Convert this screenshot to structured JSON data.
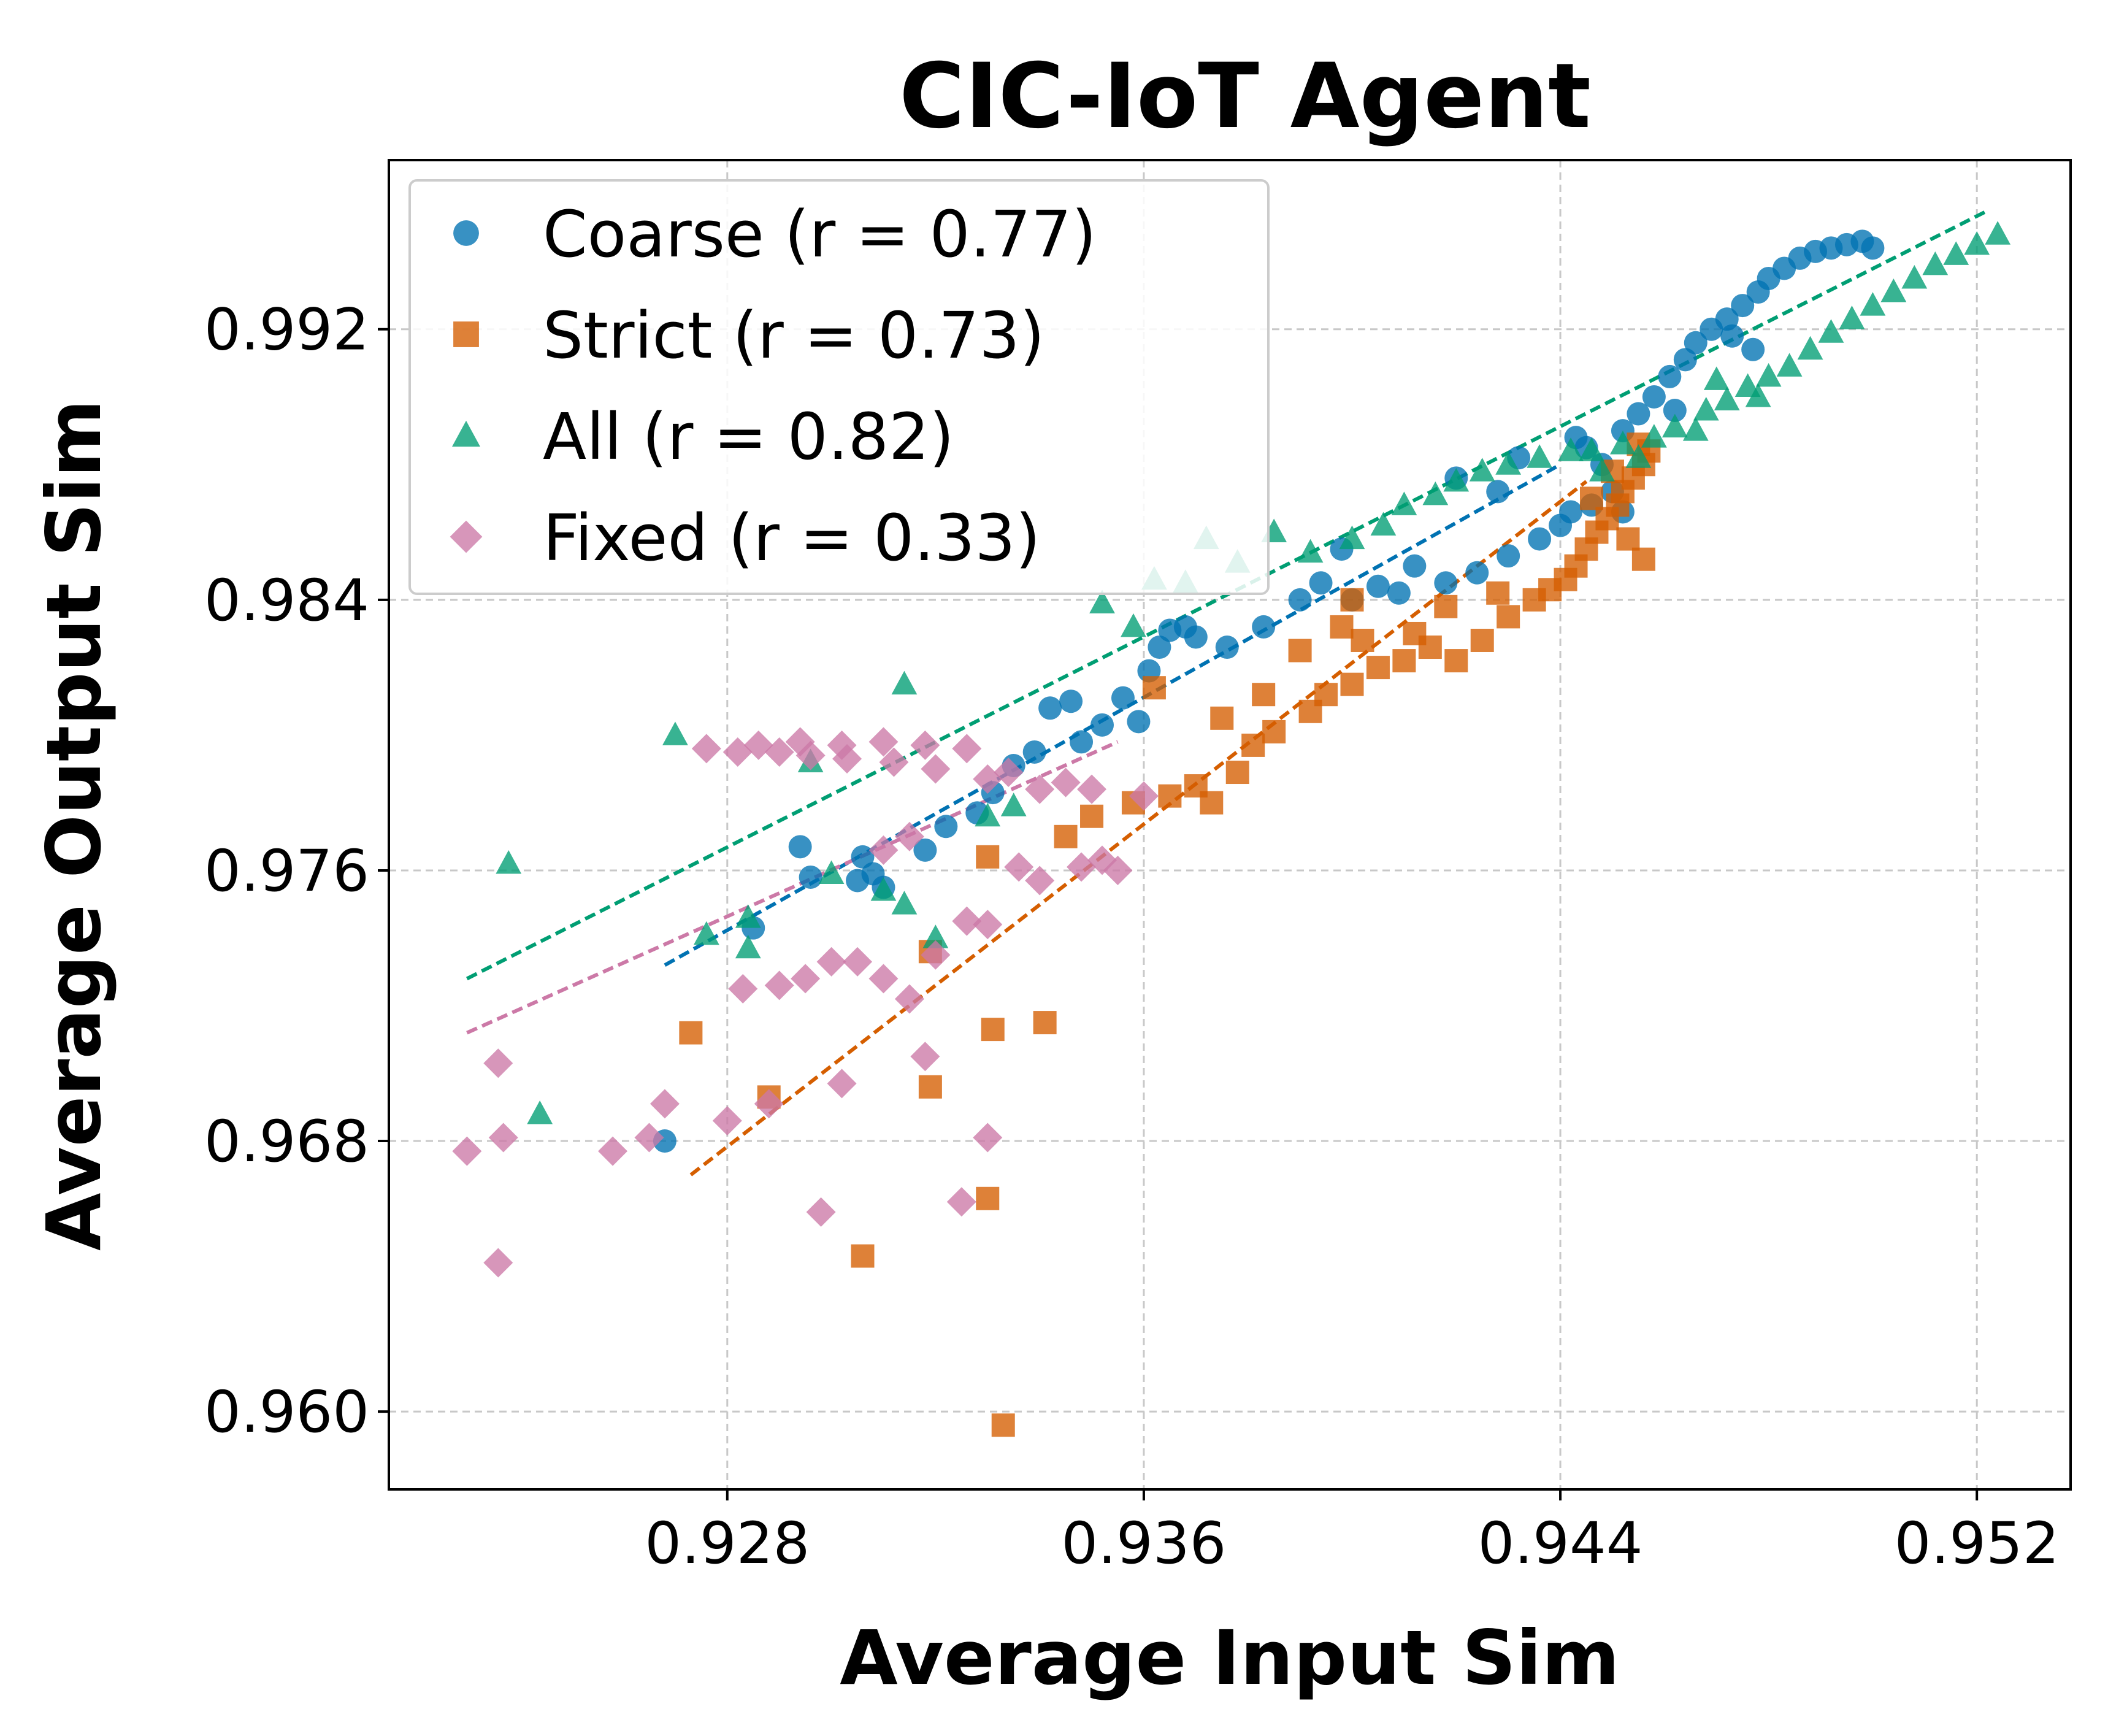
{
  "chart_data": {
    "type": "scatter",
    "title": "CIC-IoT Agent",
    "xlabel": "Average Input Sim",
    "ylabel": "Average Output Sim",
    "xlim": [
      0.9215,
      0.9538
    ],
    "ylim": [
      0.9577,
      0.997
    ],
    "xticks": [
      0.928,
      0.936,
      0.944,
      0.952
    ],
    "xtick_labels": [
      "0.928",
      "0.936",
      "0.944",
      "0.952"
    ],
    "yticks": [
      0.96,
      0.968,
      0.976,
      0.984,
      0.992
    ],
    "ytick_labels": [
      "0.960",
      "0.968",
      "0.976",
      "0.984",
      "0.992"
    ],
    "grid": true,
    "legend_position": "upper-left",
    "series": [
      {
        "name": "Coarse (r = 0.77)",
        "marker": "circle",
        "color": "#0072B2",
        "fit": [
          [
            0.9268,
            0.9732
          ],
          [
            0.944,
            0.988
          ]
        ],
        "points": [
          [
            0.9268,
            0.968
          ],
          [
            0.9285,
            0.9743
          ],
          [
            0.9294,
            0.9767
          ],
          [
            0.9296,
            0.9758
          ],
          [
            0.9305,
            0.9757
          ],
          [
            0.9306,
            0.9764
          ],
          [
            0.9308,
            0.9759
          ],
          [
            0.931,
            0.9755
          ],
          [
            0.9318,
            0.9766
          ],
          [
            0.9322,
            0.9773
          ],
          [
            0.9328,
            0.9777
          ],
          [
            0.9331,
            0.9783
          ],
          [
            0.9335,
            0.9791
          ],
          [
            0.9339,
            0.9795
          ],
          [
            0.9342,
            0.9808
          ],
          [
            0.9346,
            0.981
          ],
          [
            0.9348,
            0.9798
          ],
          [
            0.9352,
            0.9803
          ],
          [
            0.9356,
            0.9811
          ],
          [
            0.9359,
            0.9804
          ],
          [
            0.9361,
            0.9819
          ],
          [
            0.9363,
            0.9826
          ],
          [
            0.9365,
            0.9831
          ],
          [
            0.9368,
            0.9832
          ],
          [
            0.937,
            0.9829
          ],
          [
            0.9376,
            0.9826
          ],
          [
            0.9383,
            0.9832
          ],
          [
            0.939,
            0.984
          ],
          [
            0.9394,
            0.9845
          ],
          [
            0.9398,
            0.9855
          ],
          [
            0.94,
            0.984
          ],
          [
            0.9405,
            0.9844
          ],
          [
            0.9409,
            0.9842
          ],
          [
            0.9412,
            0.985
          ],
          [
            0.9418,
            0.9845
          ],
          [
            0.9424,
            0.9848
          ],
          [
            0.943,
            0.9853
          ],
          [
            0.9436,
            0.9858
          ],
          [
            0.944,
            0.9862
          ],
          [
            0.9442,
            0.9866
          ],
          [
            0.9446,
            0.9868
          ],
          [
            0.945,
            0.9872
          ],
          [
            0.9452,
            0.9866
          ],
          [
            0.9448,
            0.988
          ],
          [
            0.9445,
            0.9885
          ],
          [
            0.9452,
            0.989
          ],
          [
            0.9455,
            0.9895
          ],
          [
            0.9458,
            0.99
          ],
          [
            0.9461,
            0.9906
          ],
          [
            0.9464,
            0.9911
          ],
          [
            0.9466,
            0.9916
          ],
          [
            0.9469,
            0.992
          ],
          [
            0.9472,
            0.9923
          ],
          [
            0.9475,
            0.9927
          ],
          [
            0.9478,
            0.9931
          ],
          [
            0.948,
            0.9935
          ],
          [
            0.9483,
            0.9938
          ],
          [
            0.9486,
            0.9941
          ],
          [
            0.9489,
            0.9943
          ],
          [
            0.9492,
            0.9944
          ],
          [
            0.9495,
            0.9945
          ],
          [
            0.9498,
            0.9946
          ],
          [
            0.95,
            0.9944
          ],
          [
            0.9473,
            0.9918
          ],
          [
            0.9477,
            0.9914
          ],
          [
            0.9462,
            0.9896
          ],
          [
            0.9443,
            0.9888
          ],
          [
            0.9432,
            0.9882
          ],
          [
            0.9428,
            0.9872
          ],
          [
            0.942,
            0.9876
          ]
        ]
      },
      {
        "name": "Strict (r = 0.73)",
        "marker": "square",
        "color": "#D55E00",
        "fit": [
          [
            0.9273,
            0.967
          ],
          [
            0.9445,
            0.9875
          ]
        ],
        "points": [
          [
            0.9333,
            0.9596
          ],
          [
            0.9306,
            0.9646
          ],
          [
            0.933,
            0.9663
          ],
          [
            0.9288,
            0.9693
          ],
          [
            0.9319,
            0.9696
          ],
          [
            0.9273,
            0.9712
          ],
          [
            0.9331,
            0.9713
          ],
          [
            0.9341,
            0.9715
          ],
          [
            0.9319,
            0.9736
          ],
          [
            0.933,
            0.9764
          ],
          [
            0.9345,
            0.977
          ],
          [
            0.935,
            0.9776
          ],
          [
            0.9358,
            0.978
          ],
          [
            0.9365,
            0.9782
          ],
          [
            0.937,
            0.9785
          ],
          [
            0.9373,
            0.978
          ],
          [
            0.9378,
            0.9789
          ],
          [
            0.9381,
            0.9797
          ],
          [
            0.9385,
            0.9801
          ],
          [
            0.9392,
            0.9807
          ],
          [
            0.9395,
            0.9812
          ],
          [
            0.94,
            0.9815
          ],
          [
            0.9405,
            0.982
          ],
          [
            0.941,
            0.9822
          ],
          [
            0.9415,
            0.9826
          ],
          [
            0.942,
            0.9822
          ],
          [
            0.9425,
            0.9828
          ],
          [
            0.943,
            0.9835
          ],
          [
            0.9435,
            0.984
          ],
          [
            0.9438,
            0.9843
          ],
          [
            0.9441,
            0.9846
          ],
          [
            0.9443,
            0.985
          ],
          [
            0.9445,
            0.9855
          ],
          [
            0.9447,
            0.986
          ],
          [
            0.9449,
            0.9864
          ],
          [
            0.9451,
            0.9868
          ],
          [
            0.9452,
            0.9872
          ],
          [
            0.9454,
            0.9876
          ],
          [
            0.9456,
            0.988
          ],
          [
            0.9457,
            0.9884
          ],
          [
            0.9455,
            0.9886
          ],
          [
            0.945,
            0.9878
          ],
          [
            0.9446,
            0.987
          ],
          [
            0.9453,
            0.9858
          ],
          [
            0.9456,
            0.9852
          ],
          [
            0.94,
            0.984
          ],
          [
            0.9402,
            0.9828
          ],
          [
            0.9412,
            0.983
          ],
          [
            0.9418,
            0.9838
          ],
          [
            0.9428,
            0.9842
          ],
          [
            0.9362,
            0.9814
          ],
          [
            0.9375,
            0.9805
          ],
          [
            0.9383,
            0.9812
          ],
          [
            0.939,
            0.9825
          ],
          [
            0.9398,
            0.9832
          ]
        ]
      },
      {
        "name": "All (r = 0.82)",
        "marker": "triangle",
        "color": "#009E73",
        "fit": [
          [
            0.923,
            0.9728
          ],
          [
            0.9522,
            0.9955
          ]
        ],
        "points": [
          [
            0.9238,
            0.9762
          ],
          [
            0.9244,
            0.9688
          ],
          [
            0.927,
            0.98
          ],
          [
            0.9276,
            0.9741
          ],
          [
            0.9284,
            0.9746
          ],
          [
            0.9284,
            0.9737
          ],
          [
            0.9296,
            0.9792
          ],
          [
            0.93,
            0.9759
          ],
          [
            0.931,
            0.9754
          ],
          [
            0.9314,
            0.975
          ],
          [
            0.9314,
            0.9815
          ],
          [
            0.932,
            0.974
          ],
          [
            0.933,
            0.9776
          ],
          [
            0.9335,
            0.9779
          ],
          [
            0.9352,
            0.9839
          ],
          [
            0.9358,
            0.9832
          ],
          [
            0.9362,
            0.9846
          ],
          [
            0.9368,
            0.9845
          ],
          [
            0.9372,
            0.9858
          ],
          [
            0.9378,
            0.9851
          ],
          [
            0.9385,
            0.986
          ],
          [
            0.9392,
            0.9854
          ],
          [
            0.94,
            0.9858
          ],
          [
            0.9406,
            0.9862
          ],
          [
            0.941,
            0.9868
          ],
          [
            0.9416,
            0.9871
          ],
          [
            0.942,
            0.9875
          ],
          [
            0.9425,
            0.9878
          ],
          [
            0.943,
            0.988
          ],
          [
            0.9436,
            0.9882
          ],
          [
            0.9442,
            0.9884
          ],
          [
            0.9446,
            0.9884
          ],
          [
            0.9452,
            0.9886
          ],
          [
            0.9458,
            0.9888
          ],
          [
            0.9462,
            0.9891
          ],
          [
            0.9468,
            0.9896
          ],
          [
            0.9472,
            0.9899
          ],
          [
            0.9476,
            0.9903
          ],
          [
            0.948,
            0.9906
          ],
          [
            0.9484,
            0.9909
          ],
          [
            0.9488,
            0.9914
          ],
          [
            0.9492,
            0.9919
          ],
          [
            0.9496,
            0.9923
          ],
          [
            0.95,
            0.9927
          ],
          [
            0.9504,
            0.9931
          ],
          [
            0.9508,
            0.9935
          ],
          [
            0.9512,
            0.9939
          ],
          [
            0.9516,
            0.9942
          ],
          [
            0.952,
            0.9945
          ],
          [
            0.9524,
            0.9948
          ],
          [
            0.947,
            0.9905
          ],
          [
            0.9478,
            0.99
          ],
          [
            0.9466,
            0.989
          ],
          [
            0.9455,
            0.9882
          ],
          [
            0.9448,
            0.9878
          ]
        ]
      },
      {
        "name": "Fixed (r = 0.33)",
        "marker": "diamond",
        "color": "#CC79A7",
        "fit": [
          [
            0.923,
            0.9712
          ],
          [
            0.9355,
            0.9798
          ]
        ],
        "points": [
          [
            0.9236,
            0.9644
          ],
          [
            0.923,
            0.9677
          ],
          [
            0.9237,
            0.9681
          ],
          [
            0.9236,
            0.9703
          ],
          [
            0.9258,
            0.9677
          ],
          [
            0.9265,
            0.9681
          ],
          [
            0.9268,
            0.9691
          ],
          [
            0.928,
            0.9686
          ],
          [
            0.9288,
            0.9691
          ],
          [
            0.9298,
            0.9659
          ],
          [
            0.9302,
            0.9697
          ],
          [
            0.9283,
            0.9725
          ],
          [
            0.929,
            0.9726
          ],
          [
            0.9295,
            0.9728
          ],
          [
            0.93,
            0.9733
          ],
          [
            0.9305,
            0.9733
          ],
          [
            0.931,
            0.9728
          ],
          [
            0.9315,
            0.9722
          ],
          [
            0.932,
            0.9735
          ],
          [
            0.9326,
            0.9745
          ],
          [
            0.933,
            0.9744
          ],
          [
            0.9336,
            0.9761
          ],
          [
            0.934,
            0.9757
          ],
          [
            0.9348,
            0.9761
          ],
          [
            0.9352,
            0.9763
          ],
          [
            0.9355,
            0.976
          ],
          [
            0.936,
            0.9782
          ],
          [
            0.934,
            0.9784
          ],
          [
            0.933,
            0.9787
          ],
          [
            0.932,
            0.979
          ],
          [
            0.9312,
            0.9792
          ],
          [
            0.9303,
            0.9793
          ],
          [
            0.9296,
            0.9794
          ],
          [
            0.929,
            0.9795
          ],
          [
            0.9282,
            0.9795
          ],
          [
            0.9276,
            0.9796
          ],
          [
            0.9286,
            0.9797
          ],
          [
            0.9294,
            0.9798
          ],
          [
            0.9302,
            0.9797
          ],
          [
            0.931,
            0.9798
          ],
          [
            0.9318,
            0.9797
          ],
          [
            0.9326,
            0.9796
          ],
          [
            0.9334,
            0.9789
          ],
          [
            0.9345,
            0.9786
          ],
          [
            0.935,
            0.9784
          ],
          [
            0.9318,
            0.9705
          ],
          [
            0.933,
            0.9681
          ],
          [
            0.9325,
            0.9662
          ],
          [
            0.931,
            0.9766
          ],
          [
            0.9315,
            0.977
          ]
        ]
      }
    ]
  }
}
